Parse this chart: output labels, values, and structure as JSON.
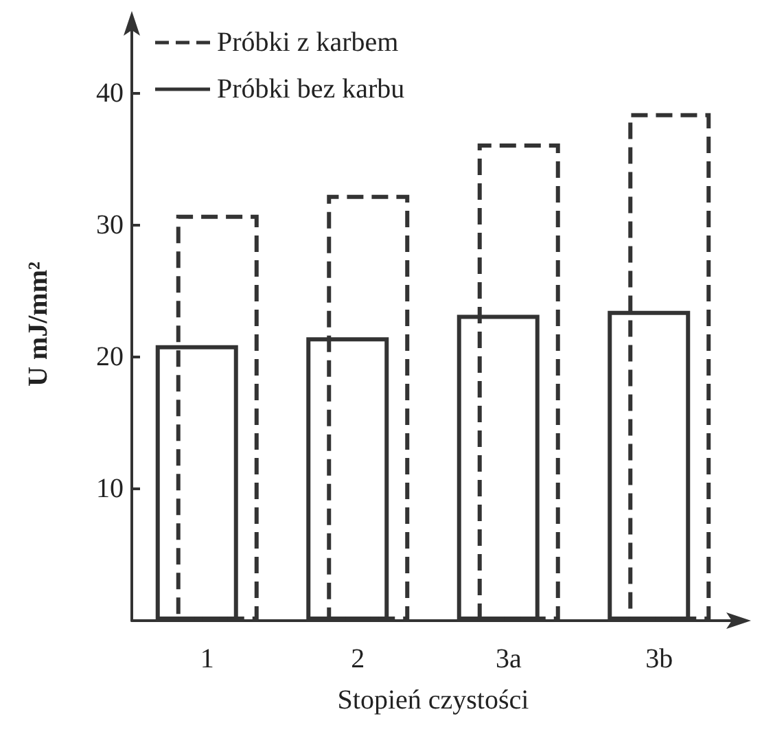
{
  "chart_data": {
    "type": "bar",
    "xlabel": "Stopień czystości",
    "ylabel": "U mJ/mm²",
    "categories": [
      "1",
      "2",
      "3a",
      "3b"
    ],
    "series": [
      {
        "name": "Próbki z karbem",
        "color": "#333333",
        "line_style": "dashed",
        "values": [
          30.8,
          32.3,
          36.2,
          38.5
        ]
      },
      {
        "name": "Próbki bez karbu",
        "color": "#333333",
        "line_style": "solid",
        "values": [
          20.9,
          21.5,
          23.2,
          23.5
        ]
      }
    ],
    "ylim": [
      0,
      45
    ],
    "yticks": [
      10,
      20,
      30,
      40
    ],
    "grid": false,
    "legend": "top left"
  }
}
